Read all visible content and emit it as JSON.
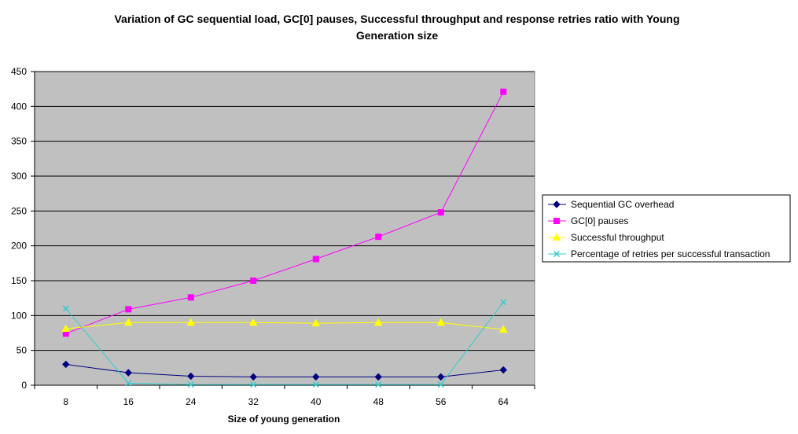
{
  "chart_data": {
    "type": "line",
    "title_lines": [
      "Variation of GC sequential load, GC[0] pauses, Successful throughput and response retries ratio with Young",
      "Generation size"
    ],
    "xlabel": "Size of young generation",
    "ylabel": "",
    "categories": [
      "8",
      "16",
      "24",
      "32",
      "40",
      "48",
      "56",
      "64"
    ],
    "ylim": [
      0,
      450
    ],
    "yticks": [
      0,
      50,
      100,
      150,
      200,
      250,
      300,
      350,
      400,
      450
    ],
    "grid": true,
    "legend_position": "right",
    "plot_background": "#c0c0c0",
    "series": [
      {
        "name": "Sequential GC overhead",
        "color": "#000080",
        "marker": "diamond",
        "values": [
          30,
          18,
          13,
          12,
          12,
          12,
          12,
          22
        ]
      },
      {
        "name": "GC[0] pauses",
        "color": "#ff00ff",
        "marker": "square",
        "values": [
          74,
          109,
          126,
          150,
          181,
          213,
          248,
          421
        ]
      },
      {
        "name": "Successful throughput",
        "color": "#ffff00",
        "marker": "triangle",
        "values": [
          81,
          90,
          90,
          90,
          89,
          90,
          90,
          80
        ]
      },
      {
        "name": "Percentage of retries per successful transaction",
        "color": "#33cccc",
        "marker": "x",
        "values": [
          110,
          3,
          1,
          1,
          1,
          1,
          1,
          119
        ]
      }
    ]
  }
}
